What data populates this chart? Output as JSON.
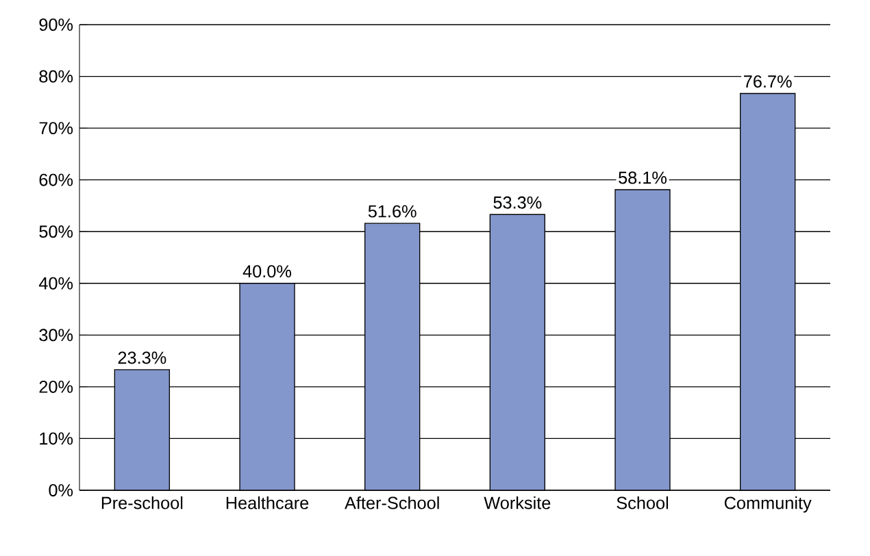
{
  "chart_data": {
    "type": "bar",
    "categories": [
      "Pre-school",
      "Healthcare",
      "After-School",
      "Worksite",
      "School",
      "Community"
    ],
    "values": [
      23.3,
      40.0,
      51.6,
      53.3,
      58.1,
      76.7
    ],
    "value_labels": [
      "23.3%",
      "40.0%",
      "51.6%",
      "53.3%",
      "58.1%",
      "76.7%"
    ],
    "color": "#8497cc",
    "ylim": [
      0,
      90
    ],
    "yticks": [
      {
        "value": 0,
        "label": "0%"
      },
      {
        "value": 10,
        "label": "10%"
      },
      {
        "value": 20,
        "label": "20%"
      },
      {
        "value": 30,
        "label": "30%"
      },
      {
        "value": 40,
        "label": "40%"
      },
      {
        "value": 50,
        "label": "50%"
      },
      {
        "value": 60,
        "label": "60%"
      },
      {
        "value": 70,
        "label": "70%"
      },
      {
        "value": 80,
        "label": "80%"
      },
      {
        "value": 90,
        "label": "90%"
      }
    ],
    "grid": "y"
  }
}
